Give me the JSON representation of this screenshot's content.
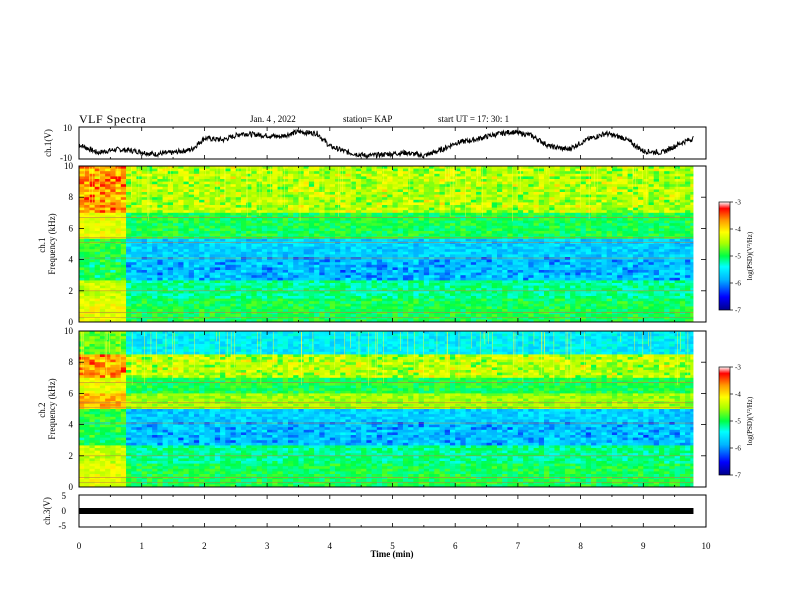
{
  "header": {
    "title": "VLF Spectra",
    "date": "Jan. 4 , 2022",
    "station": "station= KAP",
    "start_time": "start UT = 17: 30: 1"
  },
  "chart_data": [
    {
      "type": "line",
      "panel": "ch1-waveform",
      "ylabel": "ch.1(V)",
      "ylim": [
        -10,
        10
      ],
      "yticks": [
        "10",
        "-10"
      ],
      "x": [
        0,
        0.3,
        0.6,
        0.9,
        1.2,
        1.5,
        1.8,
        2.0,
        2.3,
        2.6,
        2.9,
        3.2,
        3.5,
        3.8,
        4.0,
        4.3,
        4.6,
        4.9,
        5.2,
        5.5,
        5.8,
        6.0,
        6.3,
        6.6,
        6.9,
        7.2,
        7.5,
        7.8,
        8.1,
        8.4,
        8.7,
        9.0,
        9.3,
        9.6,
        9.8
      ],
      "y": [
        -1,
        -6,
        -4,
        -5,
        -7,
        -6,
        -4,
        3,
        2,
        6,
        5,
        4,
        7,
        6,
        -2,
        -6,
        -8,
        -7,
        -6,
        -8,
        -4,
        0,
        2,
        5,
        7,
        5,
        -2,
        -4,
        2,
        6,
        3,
        -5,
        -6,
        0,
        3
      ]
    },
    {
      "type": "heatmap",
      "panel": "ch1-spectrogram",
      "ylabel": "ch.1 Frequency (kHz)",
      "ylim": [
        0,
        10
      ],
      "yticks": [
        "0",
        "2",
        "4",
        "6",
        "8",
        "10"
      ],
      "colorbar": {
        "label": "log(PSD)(V²/Hz)",
        "range": [
          -7,
          -3
        ],
        "ticks": [
          "-3",
          "-4",
          "-5",
          "-6",
          "-7"
        ]
      }
    },
    {
      "type": "heatmap",
      "panel": "ch2-spectrogram",
      "ylabel": "ch.2 Frequency (kHz)",
      "ylim": [
        0,
        10
      ],
      "yticks": [
        "0",
        "2",
        "4",
        "6",
        "8",
        "10"
      ],
      "colorbar": {
        "label": "log(PSD)(V²/Hz)",
        "range": [
          -7,
          -3
        ],
        "ticks": [
          "-3",
          "-4",
          "-5",
          "-6",
          "-7"
        ]
      }
    },
    {
      "type": "line",
      "panel": "ch3-waveform",
      "ylabel": "ch.3(V)",
      "ylim": [
        -5,
        5
      ],
      "yticks": [
        "5",
        "0",
        "-5"
      ],
      "x": [
        0,
        9.8
      ],
      "y": [
        0,
        0
      ]
    }
  ],
  "xaxis": {
    "label": "Time (min)",
    "xlim": [
      0,
      10
    ],
    "ticks": [
      "0",
      "1",
      "2",
      "3",
      "4",
      "5",
      "6",
      "7",
      "8",
      "9",
      "10"
    ]
  },
  "colors": {
    "colormap": [
      "#00008a",
      "#0000ff",
      "#00b4ff",
      "#00ffff",
      "#00ff44",
      "#aaff00",
      "#ffff00",
      "#ff9900",
      "#ff0000",
      "#ffffff"
    ],
    "waveform": "#000000"
  }
}
